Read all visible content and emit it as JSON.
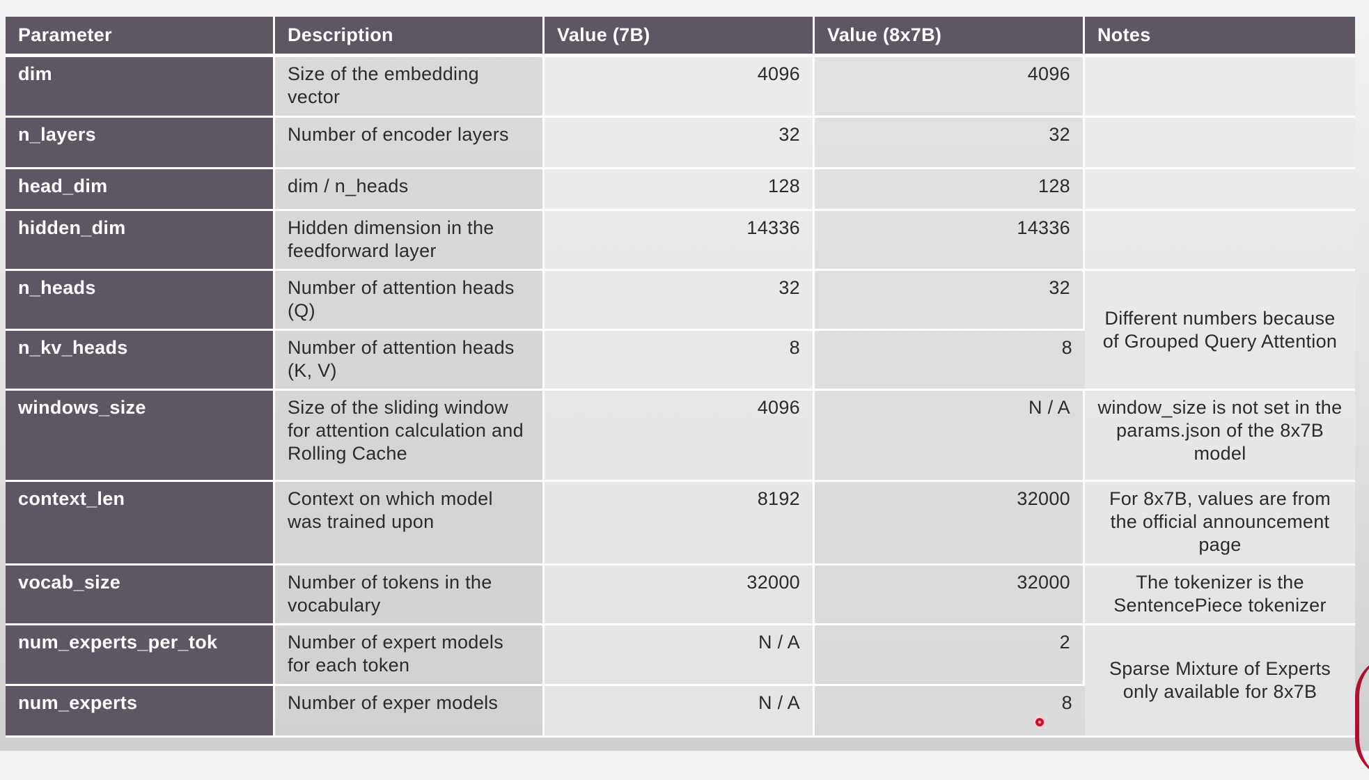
{
  "table": {
    "headers": [
      "Parameter",
      "Description",
      "Value (7B)",
      "Value (8x7B)",
      "Notes"
    ],
    "rows": [
      {
        "param": "dim",
        "desc": "Size of the embedding vector",
        "v7": "4096",
        "v8": "4096"
      },
      {
        "param": "n_layers",
        "desc": "Number of encoder layers",
        "v7": "32",
        "v8": "32"
      },
      {
        "param": "head_dim",
        "desc": "dim / n_heads",
        "v7": "128",
        "v8": "128"
      },
      {
        "param": "hidden_dim",
        "desc": "Hidden dimension in the feedforward layer",
        "v7": "14336",
        "v8": "14336"
      },
      {
        "param": "n_heads",
        "desc": "Number of attention heads (Q)",
        "v7": "32",
        "v8": "32"
      },
      {
        "param": "n_kv_heads",
        "desc": "Number of attention heads (K, V)",
        "v7": "8",
        "v8": "8"
      },
      {
        "param": "windows_size",
        "desc": "Size of the sliding window for attention calculation and Rolling Cache",
        "v7": "4096",
        "v8": "N / A"
      },
      {
        "param": "context_len",
        "desc": "Context on which model was trained upon",
        "v7": "8192",
        "v8": "32000"
      },
      {
        "param": "vocab_size",
        "desc": "Number of tokens in the vocabulary",
        "v7": "32000",
        "v8": "32000"
      },
      {
        "param": "num_experts_per_tok",
        "desc": "Number of expert models for each token",
        "v7": "N / A",
        "v8": "2"
      },
      {
        "param": "num_experts",
        "desc": "Number of exper models",
        "v7": "N / A",
        "v8": "8"
      }
    ],
    "notes": {
      "gqa": "Different numbers because of Grouped Query Attention",
      "window": "window_size is not set in the params.json of the 8x7B model",
      "context": "For 8x7B, values are from the official announcement page",
      "vocab": "The tokenizer is the SentencePiece tokenizer",
      "experts": "Sparse Mixture of Experts only available for 8x7B"
    }
  },
  "colors": {
    "header_bg": "#5e5763",
    "cursor": "#c8102e"
  }
}
